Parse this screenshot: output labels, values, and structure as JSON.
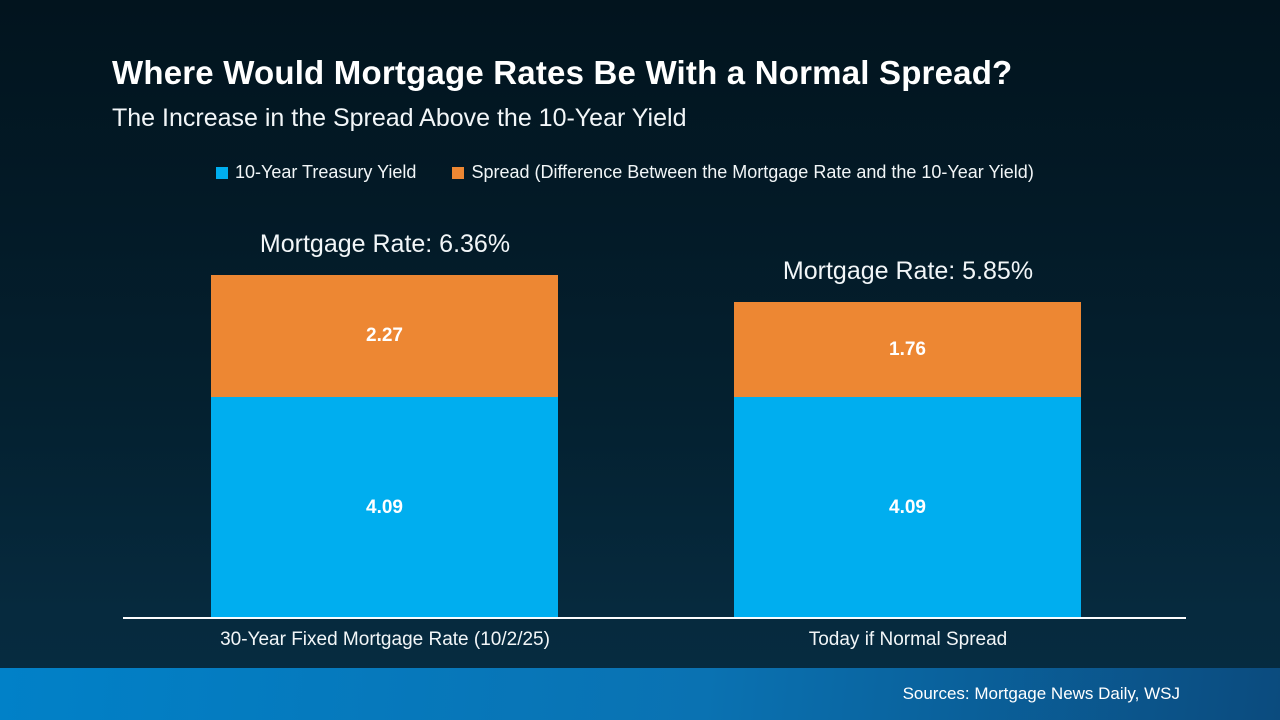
{
  "slide": {
    "title": "Where Would Mortgage Rates Be With a Normal Spread?",
    "subtitle": "The Increase in the Spread Above the 10-Year Yield",
    "source": "Sources: Mortgage News Daily, WSJ"
  },
  "colors": {
    "treasury_blue": "#00AEEF",
    "spread_orange": "#ED8733",
    "background_top": "#02141E",
    "background_bottom": "#072C41",
    "footer_gradient_left": "#0181C8",
    "footer_gradient_right": "#0B4B7E",
    "axis_line": "#FCFDFE",
    "text": "#FFFFFF"
  },
  "legend": [
    {
      "label": "10-Year Treasury Yield",
      "color": "#00AEEF"
    },
    {
      "label": "Spread (Difference Between the Mortgage Rate and the 10-Year Yield)",
      "color": "#ED8733"
    }
  ],
  "chart_data": {
    "type": "bar",
    "stacked": true,
    "title": "Where Would Mortgage Rates Be With a Normal Spread?",
    "subtitle": "The Increase in the Spread Above the 10-Year Yield",
    "categories": [
      "30-Year Fixed Mortgage Rate (10/2/25)",
      "Today if Normal Spread"
    ],
    "series": [
      {
        "name": "10-Year Treasury Yield",
        "color": "#00AEEF",
        "values": [
          4.09,
          4.09
        ]
      },
      {
        "name": "Spread (Difference Between the Mortgage Rate and the 10-Year Yield)",
        "color": "#ED8733",
        "values": [
          2.27,
          1.76
        ]
      }
    ],
    "totals": [
      6.36,
      5.85
    ],
    "totals_labels": [
      "Mortgage Rate: 6.36%",
      "Mortgage Rate: 5.85%"
    ],
    "xlabel": "",
    "ylabel": "",
    "ylim": [
      0,
      6.36
    ],
    "grid": false,
    "legend_position": "top"
  }
}
